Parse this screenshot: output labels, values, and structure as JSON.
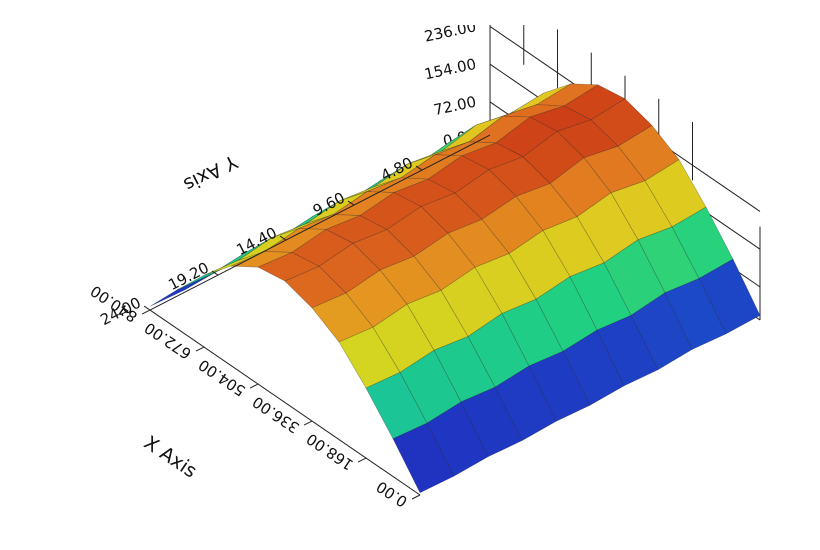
{
  "chart_data": {
    "type": "surface",
    "x_label": "X Axis",
    "y_label": "Y Axis",
    "x": [
      0,
      84,
      168,
      252,
      336,
      420,
      504,
      588,
      672,
      756,
      840
    ],
    "y": [
      0,
      2.4,
      4.8,
      7.2,
      9.6,
      12,
      14.4,
      16.8,
      19.2,
      21.6,
      24
    ],
    "z": [
      [
        10,
        8,
        12,
        6,
        9,
        5,
        8,
        4,
        7,
        3,
        5
      ],
      [
        92,
        88,
        95,
        84,
        90,
        82,
        88,
        80,
        86,
        78,
        82
      ],
      [
        165,
        160,
        170,
        158,
        166,
        155,
        162,
        150,
        158,
        148,
        152
      ],
      [
        228,
        220,
        232,
        218,
        226,
        214,
        222,
        210,
        218,
        206,
        212
      ],
      [
        262,
        255,
        268,
        250,
        260,
        248,
        256,
        244,
        252,
        240,
        246
      ],
      [
        280,
        272,
        285,
        268,
        278,
        265,
        274,
        262,
        270,
        258,
        264
      ],
      [
        270,
        262,
        276,
        258,
        268,
        255,
        264,
        252,
        260,
        248,
        254
      ],
      [
        232,
        225,
        238,
        220,
        230,
        218,
        226,
        214,
        222,
        210,
        216
      ],
      [
        172,
        165,
        178,
        160,
        170,
        158,
        166,
        154,
        162,
        150,
        156
      ],
      [
        96,
        90,
        100,
        86,
        94,
        84,
        92,
        82,
        88,
        80,
        84
      ],
      [
        12,
        10,
        14,
        8,
        11,
        7,
        10,
        6,
        9,
        5,
        8
      ]
    ],
    "xlim": [
      0,
      840
    ],
    "ylim": [
      0,
      24
    ],
    "zlim": [
      0,
      290
    ],
    "xticks": [
      {
        "value": 0,
        "label": "0.00"
      },
      {
        "value": 168,
        "label": "168.00"
      },
      {
        "value": 336,
        "label": "336.00"
      },
      {
        "value": 504,
        "label": "504.00"
      },
      {
        "value": 672,
        "label": "672.00"
      },
      {
        "value": 840,
        "label": "840.00"
      }
    ],
    "yticks": [
      {
        "value": 4.8,
        "label": "4.80"
      },
      {
        "value": 9.6,
        "label": "9.60"
      },
      {
        "value": 14.4,
        "label": "14.40"
      },
      {
        "value": 19.2,
        "label": "19.20"
      },
      {
        "value": 24,
        "label": "24.00"
      }
    ],
    "zticks": [
      {
        "value": 0,
        "label": "0.00"
      },
      {
        "value": 72,
        "label": "72.00"
      },
      {
        "value": 154,
        "label": "154.00"
      },
      {
        "value": 236,
        "label": "236.00"
      }
    ],
    "colormap": [
      "#5a0a8a",
      "#2030c0",
      "#10a0e0",
      "#20d080",
      "#c8e020",
      "#e8c020",
      "#e07020",
      "#c02010"
    ]
  }
}
